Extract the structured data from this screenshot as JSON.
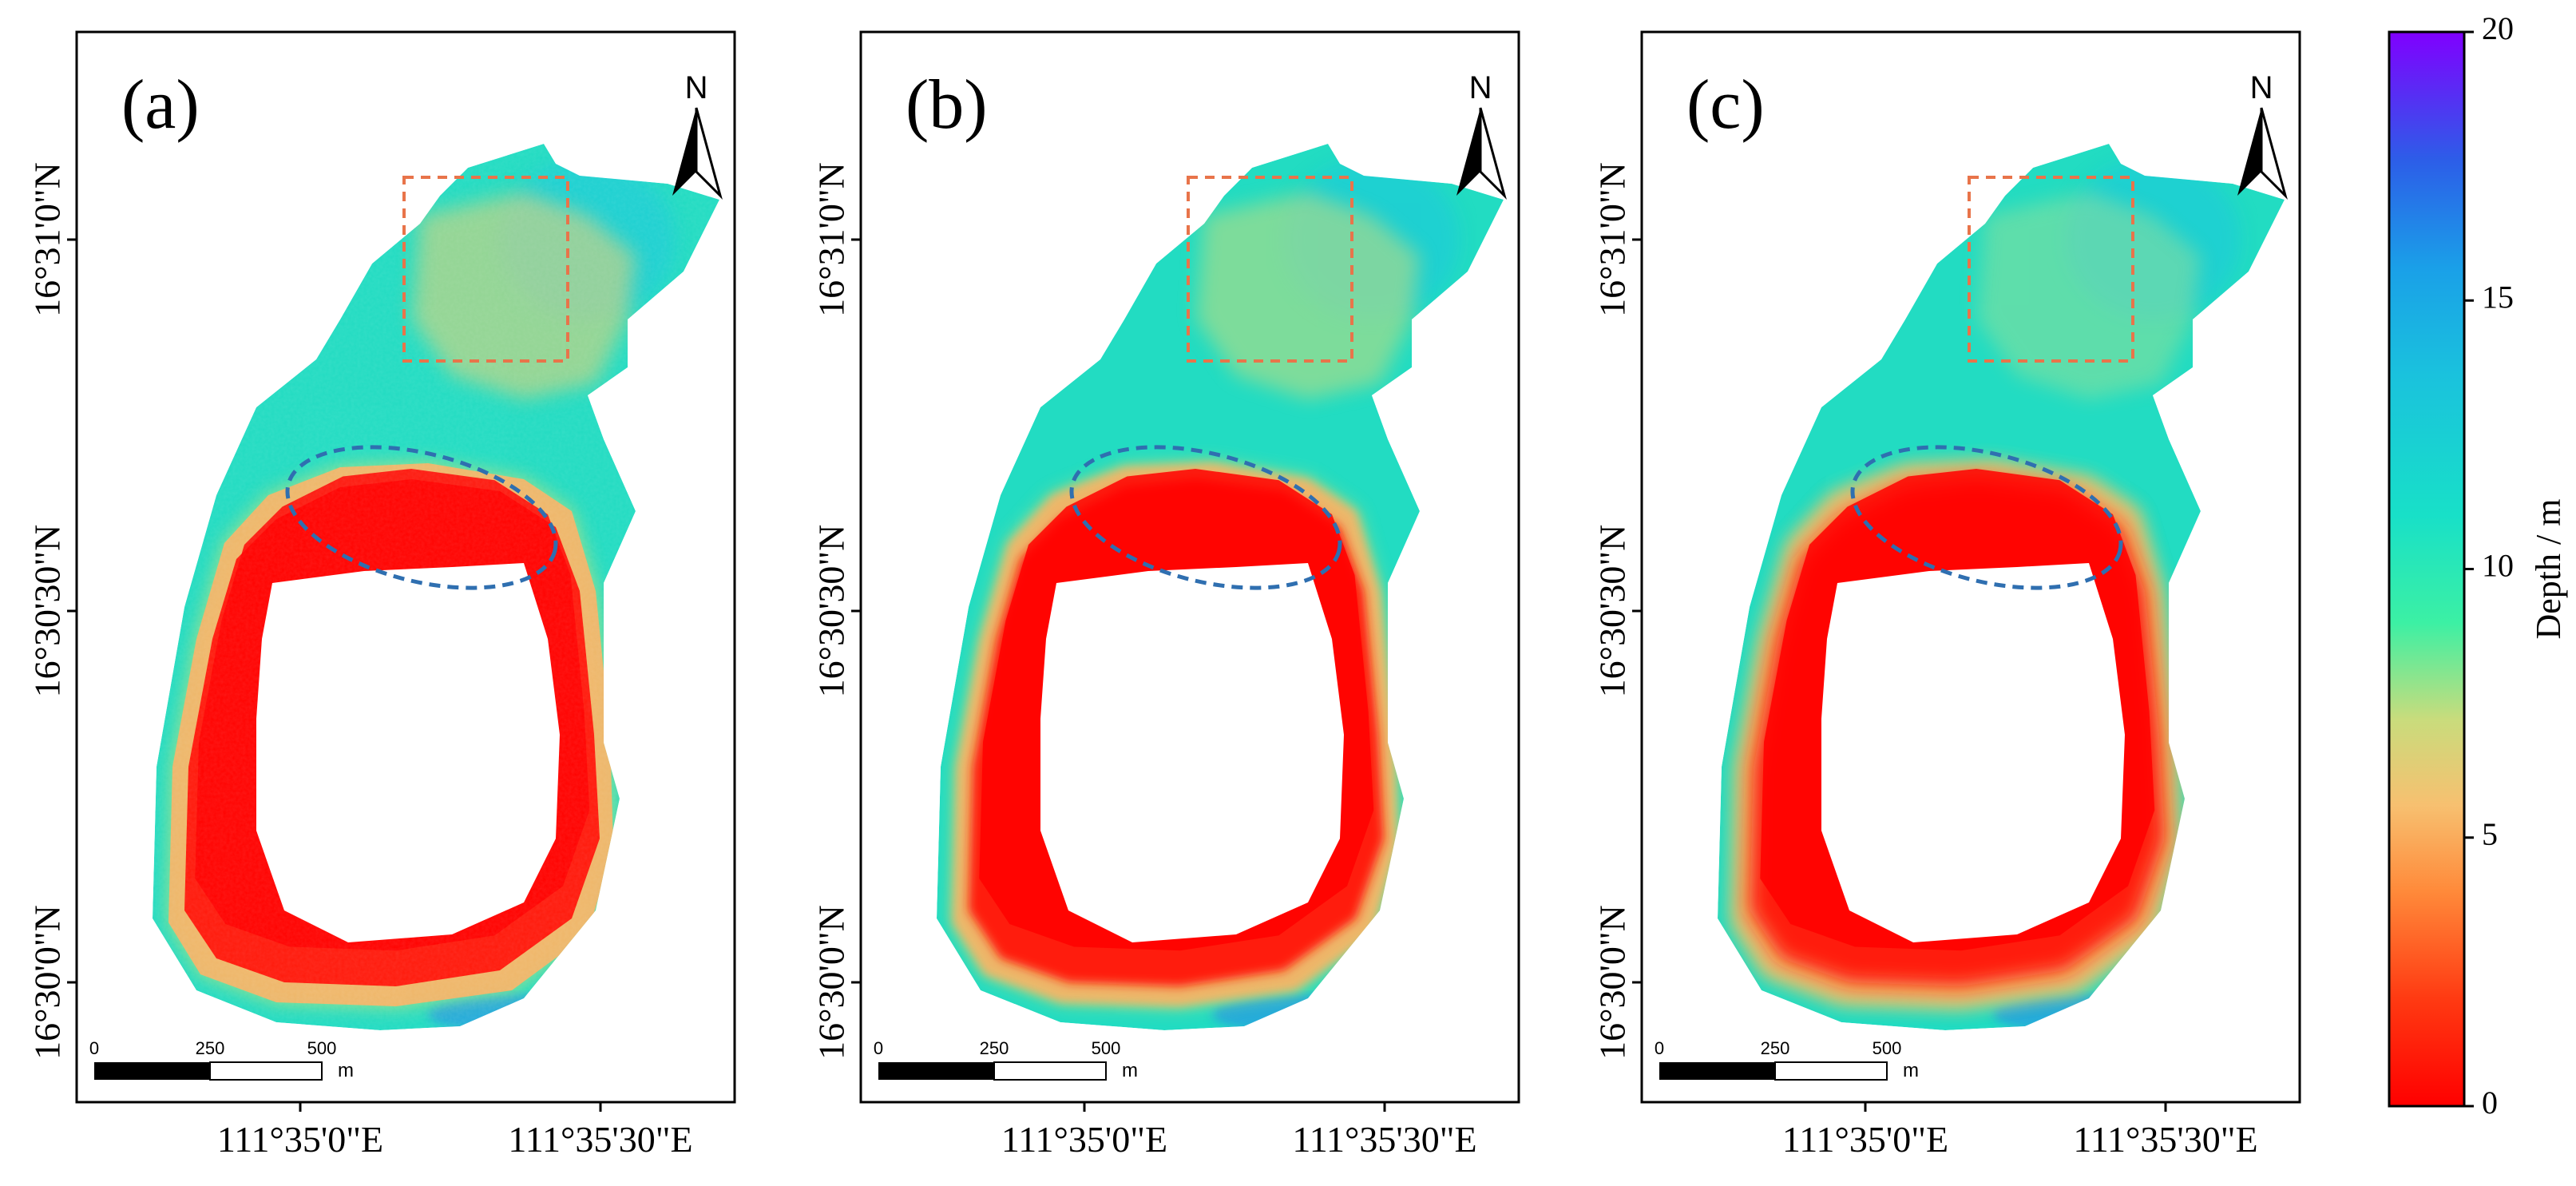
{
  "figure": {
    "panels": [
      {
        "label": "(a)",
        "lat_labels": [
          "16°31'0\"N",
          "16°30'30\"N",
          "16°30'0\"N"
        ],
        "lon_labels": [
          "111°35'0\"E",
          "111°35'30\"E"
        ],
        "north_label": "N",
        "scalebar": {
          "ticks": [
            "0",
            "250",
            "500"
          ],
          "unit": "m"
        },
        "style": "noisy"
      },
      {
        "label": "(b)",
        "lat_labels": [
          "16°31'0\"N",
          "16°30'30\"N",
          "16°30'0\"N"
        ],
        "lon_labels": [
          "111°35'0\"E",
          "111°35'30\"E"
        ],
        "north_label": "N",
        "scalebar": {
          "ticks": [
            "0",
            "250",
            "500"
          ],
          "unit": "m"
        },
        "style": "medium"
      },
      {
        "label": "(c)",
        "lat_labels": [
          "16°31'0\"N",
          "16°30'30\"N",
          "16°30'0\"N"
        ],
        "lon_labels": [
          "111°35'0\"E",
          "111°35'30\"E"
        ],
        "north_label": "N",
        "scalebar": {
          "ticks": [
            "0",
            "250",
            "500"
          ],
          "unit": "m"
        },
        "style": "smooth"
      }
    ],
    "colorbar": {
      "label": "Depth / m",
      "min": 0,
      "max": 20,
      "ticks": [
        "0",
        "5",
        "10",
        "15",
        "20"
      ],
      "colormap": "rainbow (red = shallow, violet = deep)"
    },
    "annotations": {
      "box_color": "#e8744a",
      "ellipse_color": "#2f6fb0"
    }
  }
}
